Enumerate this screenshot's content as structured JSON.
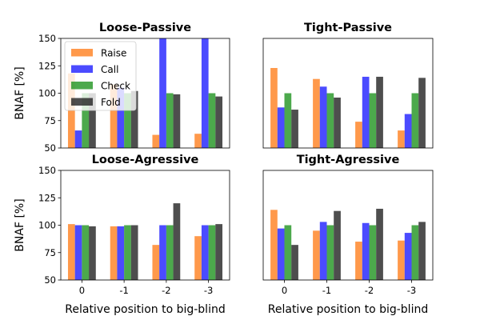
{
  "colors": {
    "Raise": "#ff7f1e",
    "Call": "#1e1eff",
    "Check": "#1f931f",
    "Fold": "#222222"
  },
  "chart_data": [
    {
      "type": "bar",
      "title": "Loose-Passive",
      "xlabel": "",
      "ylabel": "BNAF [%]",
      "ylim": [
        50,
        150
      ],
      "yticks": [
        "50",
        "75",
        "100",
        "125",
        "150"
      ],
      "categories": [
        "0",
        "-1",
        "-2",
        "-3"
      ],
      "grid": false,
      "legend": "upper-left",
      "series": [
        {
          "name": "Raise",
          "values": [
            118,
            108,
            62,
            63
          ]
        },
        {
          "name": "Call",
          "values": [
            66,
            105,
            150,
            150
          ]
        },
        {
          "name": "Check",
          "values": [
            100,
            100,
            100,
            100
          ]
        },
        {
          "name": "Fold",
          "values": [
            100,
            102,
            99,
            97
          ]
        }
      ]
    },
    {
      "type": "bar",
      "title": "Tight-Passive",
      "xlabel": "",
      "ylabel": "",
      "ylim": [
        50,
        150
      ],
      "categories": [
        "0",
        "-1",
        "-2",
        "-3"
      ],
      "grid": false,
      "series": [
        {
          "name": "Raise",
          "values": [
            123,
            113,
            74,
            66
          ]
        },
        {
          "name": "Call",
          "values": [
            87,
            106,
            115,
            81
          ]
        },
        {
          "name": "Check",
          "values": [
            100,
            100,
            100,
            100
          ]
        },
        {
          "name": "Fold",
          "values": [
            85,
            96,
            115,
            114
          ]
        }
      ]
    },
    {
      "type": "bar",
      "title": "Loose-Agressive",
      "xlabel": "Relative position to big-blind",
      "ylabel": "BNAF [%]",
      "ylim": [
        50,
        150
      ],
      "yticks": [
        "50",
        "75",
        "100",
        "125",
        "150"
      ],
      "categories": [
        "0",
        "-1",
        "-2",
        "-3"
      ],
      "xticks": [
        "0",
        "-1",
        "-2",
        "-3"
      ],
      "grid": false,
      "series": [
        {
          "name": "Raise",
          "values": [
            101,
            99,
            82,
            90
          ]
        },
        {
          "name": "Call",
          "values": [
            100,
            99,
            100,
            100
          ]
        },
        {
          "name": "Check",
          "values": [
            100,
            100,
            100,
            100
          ]
        },
        {
          "name": "Fold",
          "values": [
            99,
            100,
            120,
            101
          ]
        }
      ]
    },
    {
      "type": "bar",
      "title": "Tight-Agressive",
      "xlabel": "Relative position to big-blind",
      "ylabel": "",
      "ylim": [
        50,
        150
      ],
      "categories": [
        "0",
        "-1",
        "-2",
        "-3"
      ],
      "xticks": [
        "0",
        "-1",
        "-2",
        "-3"
      ],
      "grid": false,
      "series": [
        {
          "name": "Raise",
          "values": [
            114,
            95,
            85,
            86
          ]
        },
        {
          "name": "Call",
          "values": [
            97,
            103,
            102,
            93
          ]
        },
        {
          "name": "Check",
          "values": [
            100,
            100,
            100,
            100
          ]
        },
        {
          "name": "Fold",
          "values": [
            82,
            113,
            115,
            103
          ]
        }
      ]
    }
  ]
}
